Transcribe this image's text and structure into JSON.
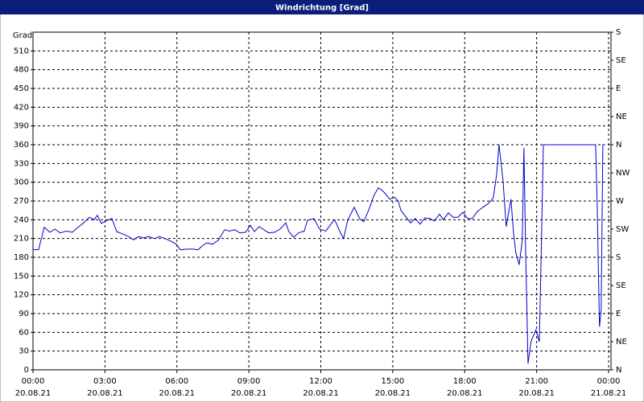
{
  "chart_data": {
    "type": "line",
    "title": "Windrichtung [Grad]",
    "ylabel": "Grad",
    "xlim": [
      0,
      24.1
    ],
    "xticks": [
      {
        "value": 0,
        "label": "00:00"
      },
      {
        "value": 3,
        "label": "03:00"
      },
      {
        "value": 6,
        "label": "06:00"
      },
      {
        "value": 9,
        "label": "09:00"
      },
      {
        "value": 12,
        "label": "12:00"
      },
      {
        "value": 15,
        "label": "15:00"
      },
      {
        "value": 18,
        "label": "18:00"
      },
      {
        "value": 21,
        "label": "21:00"
      },
      {
        "value": 24,
        "label": "00:00"
      }
    ],
    "xtick_dates": [
      "20.08.21",
      "20.08.21",
      "20.08.21",
      "20.08.21",
      "20.08.21",
      "20.08.21",
      "20.08.21",
      "20.08.21",
      "21.08.21"
    ],
    "ylim": [
      0,
      540
    ],
    "yticks": [
      0,
      30,
      60,
      90,
      120,
      150,
      180,
      210,
      240,
      270,
      300,
      330,
      360,
      390,
      420,
      450,
      480,
      510
    ],
    "y2lim": [
      0,
      540
    ],
    "y2ticks": [
      {
        "value": 0,
        "label": "N"
      },
      {
        "value": 45,
        "label": "NE"
      },
      {
        "value": 90,
        "label": "E"
      },
      {
        "value": 135,
        "label": "SE"
      },
      {
        "value": 180,
        "label": "S"
      },
      {
        "value": 225,
        "label": "SW"
      },
      {
        "value": 270,
        "label": "W"
      },
      {
        "value": 315,
        "label": "NW"
      },
      {
        "value": 360,
        "label": "N"
      },
      {
        "value": 405,
        "label": "NE"
      },
      {
        "value": 450,
        "label": "E"
      },
      {
        "value": 495,
        "label": "SE"
      },
      {
        "value": 540,
        "label": "S"
      }
    ],
    "grid": true,
    "x": [
      0,
      0.23,
      0.47,
      0.7,
      0.91,
      1.14,
      1.38,
      1.64,
      1.88,
      2.11,
      2.35,
      2.55,
      2.68,
      2.85,
      3.02,
      3.29,
      3.49,
      3.76,
      3.99,
      4.19,
      4.4,
      4.6,
      4.83,
      5.07,
      5.27,
      5.5,
      5.74,
      5.97,
      6.14,
      6.41,
      6.68,
      6.88,
      7.08,
      7.25,
      7.48,
      7.72,
      7.99,
      8.19,
      8.42,
      8.62,
      8.86,
      9.06,
      9.23,
      9.43,
      9.63,
      9.83,
      10.07,
      10.3,
      10.54,
      10.67,
      10.87,
      11.07,
      11.31,
      11.44,
      11.71,
      11.95,
      12.21,
      12.42,
      12.58,
      12.82,
      12.95,
      13.12,
      13.39,
      13.62,
      13.79,
      13.99,
      14.23,
      14.4,
      14.53,
      14.66,
      14.87,
      15.07,
      15.23,
      15.34,
      15.5,
      15.74,
      15.94,
      16.14,
      16.34,
      16.54,
      16.74,
      16.95,
      17.11,
      17.32,
      17.52,
      17.72,
      17.92,
      18.12,
      18.32,
      18.52,
      18.76,
      18.99,
      19.19,
      19.33,
      19.43,
      19.6,
      19.73,
      19.93,
      20.03,
      20.13,
      20.27,
      20.4,
      20.47,
      20.54,
      20.64,
      20.77,
      20.97,
      21.11,
      21.17,
      21.28,
      22.11,
      23.46,
      23.52,
      23.62,
      23.69,
      23.76,
      23.86
    ],
    "series": [
      {
        "color": "#0000cc",
        "values": [
          192,
          192,
          228,
          220,
          225,
          219,
          222,
          220,
          228,
          235,
          244,
          240,
          247,
          234,
          238,
          242,
          221,
          217,
          213,
          208,
          213,
          211,
          213,
          210,
          213,
          210,
          206,
          201,
          192,
          193,
          193,
          192,
          199,
          203,
          201,
          207,
          224,
          222,
          224,
          219,
          220,
          231,
          221,
          229,
          224,
          219,
          220,
          225,
          235,
          221,
          212,
          219,
          222,
          239,
          242,
          225,
          222,
          233,
          240,
          219,
          210,
          239,
          260,
          242,
          237,
          255,
          280,
          291,
          288,
          283,
          273,
          276,
          270,
          255,
          247,
          235,
          242,
          233,
          243,
          242,
          238,
          249,
          240,
          251,
          244,
          244,
          252,
          242,
          242,
          253,
          260,
          266,
          275,
          312,
          360,
          302,
          229,
          273,
          221,
          188,
          168,
          206,
          355,
          193,
          10,
          46,
          64,
          45,
          148,
          360,
          360,
          360,
          270,
          69,
          96,
          360,
          360
        ]
      }
    ]
  }
}
